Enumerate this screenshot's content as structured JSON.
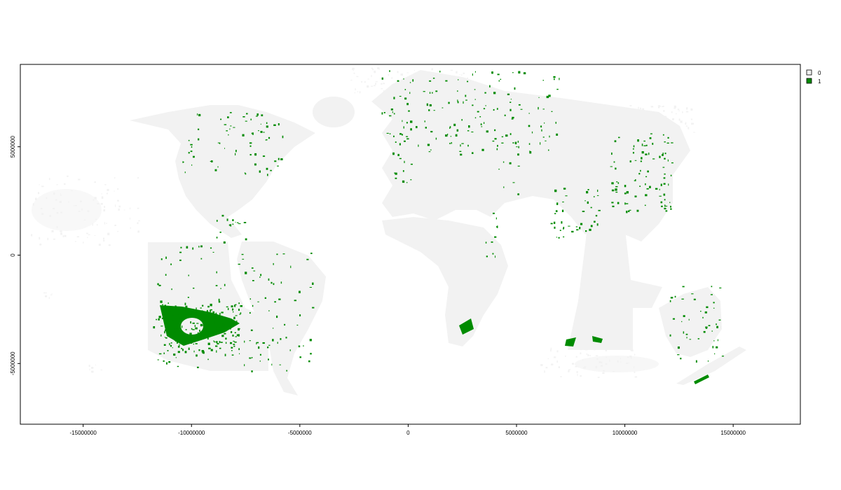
{
  "chart_data": {
    "type": "raster-map",
    "x_axis": {
      "range": [
        -17900000,
        18100000
      ],
      "ticks": [
        {
          "value": -15000000,
          "label": "-15000000"
        },
        {
          "value": -10000000,
          "label": "-10000000"
        },
        {
          "value": -5000000,
          "label": "-5000000"
        },
        {
          "value": 0,
          "label": "0"
        },
        {
          "value": 5000000,
          "label": "5000000"
        },
        {
          "value": 10000000,
          "label": "10000000"
        },
        {
          "value": 15000000,
          "label": "15000000"
        }
      ]
    },
    "y_axis": {
      "range": [
        -7800000,
        8800000
      ],
      "ticks": [
        {
          "value": -5000000,
          "label": "-5000000"
        },
        {
          "value": 0,
          "label": "0"
        },
        {
          "value": 5000000,
          "label": "5000000"
        }
      ]
    },
    "grid": false,
    "legend": {
      "placement": "top-right",
      "entries": [
        {
          "label": "0",
          "color": "#f2f2f2"
        },
        {
          "label": "1",
          "color": "#008b00"
        }
      ]
    }
  }
}
